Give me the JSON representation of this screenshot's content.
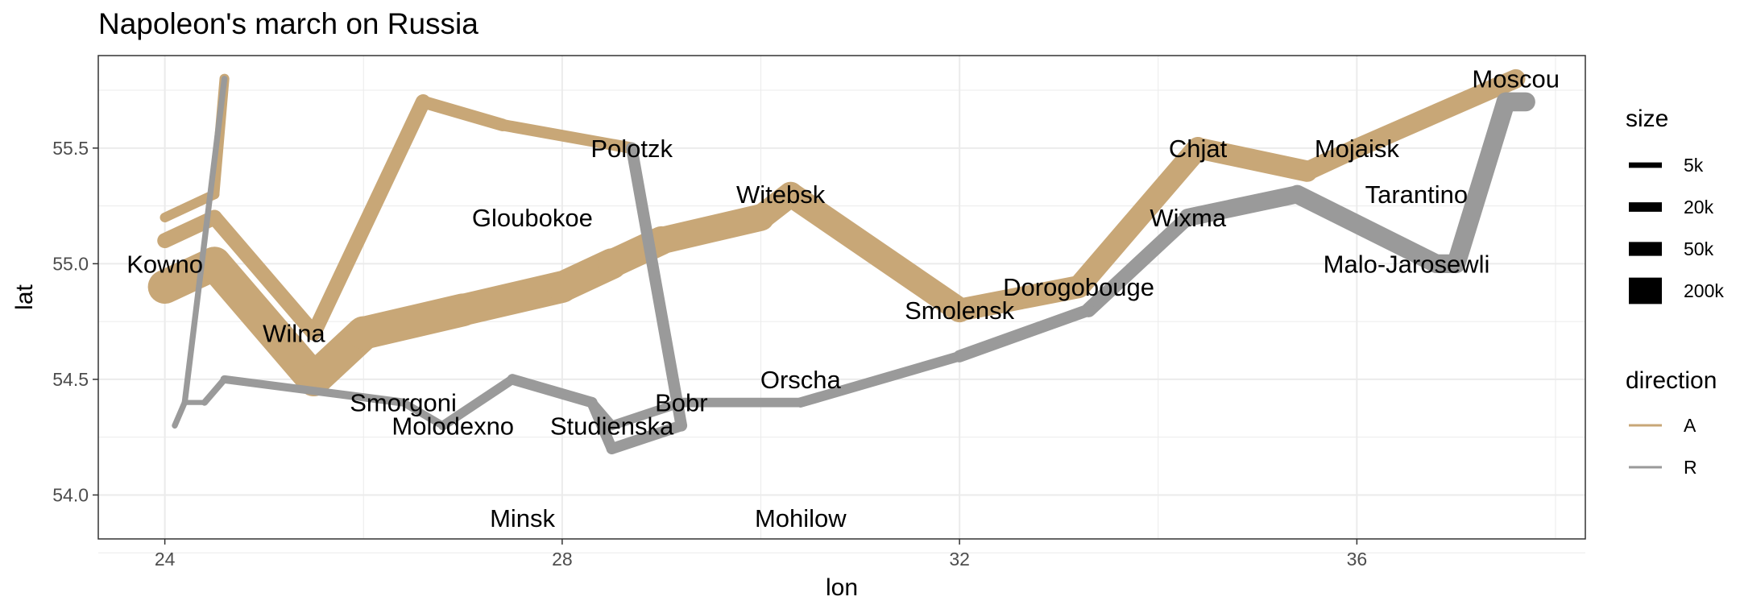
{
  "chart_data": {
    "type": "line",
    "title": "Napoleon's march on Russia",
    "xlabel": "lon",
    "ylabel": "lat",
    "xlim": [
      23.33,
      38.3
    ],
    "ylim": [
      53.81,
      55.9
    ],
    "x_ticks": [
      24,
      28,
      32,
      36
    ],
    "x_tick_labels": [
      "24",
      "28",
      "32",
      "36"
    ],
    "y_ticks": [
      54.0,
      54.5,
      55.0,
      55.5
    ],
    "y_tick_labels": [
      "54.0",
      "54.5",
      "55.0",
      "55.5"
    ],
    "grid": true,
    "legend_position": "right",
    "size_legend": {
      "title": "size",
      "entries": [
        {
          "label": "5k",
          "value": 5000
        },
        {
          "label": "20k",
          "value": 20000
        },
        {
          "label": "50k",
          "value": 50000
        },
        {
          "label": "200k",
          "value": 200000
        }
      ]
    },
    "direction_legend": {
      "title": "direction",
      "entries": [
        {
          "label": "A",
          "color": "#c8a777"
        },
        {
          "label": "R",
          "color": "#9a9a9a"
        }
      ]
    },
    "paths": [
      {
        "direction": "A",
        "color": "#c8a777",
        "points": [
          {
            "lon": 24.0,
            "lat": 54.9,
            "survivors": 340000
          },
          {
            "lon": 24.5,
            "lat": 55.0,
            "survivors": 340000
          },
          {
            "lon": 25.5,
            "lat": 54.5,
            "survivors": 340000
          },
          {
            "lon": 26.0,
            "lat": 54.7,
            "survivors": 320000
          },
          {
            "lon": 27.0,
            "lat": 54.8,
            "survivors": 300000
          },
          {
            "lon": 28.0,
            "lat": 54.9,
            "survivors": 280000
          },
          {
            "lon": 28.5,
            "lat": 55.0,
            "survivors": 240000
          },
          {
            "lon": 29.0,
            "lat": 55.1,
            "survivors": 210000
          },
          {
            "lon": 30.0,
            "lat": 55.2,
            "survivors": 180000
          },
          {
            "lon": 30.3,
            "lat": 55.3,
            "survivors": 175000
          },
          {
            "lon": 32.0,
            "lat": 54.8,
            "survivors": 145000
          },
          {
            "lon": 33.2,
            "lat": 54.9,
            "survivors": 140000
          },
          {
            "lon": 34.4,
            "lat": 55.5,
            "survivors": 127100
          },
          {
            "lon": 35.5,
            "lat": 55.4,
            "survivors": 100000
          },
          {
            "lon": 36.0,
            "lat": 55.5,
            "survivors": 100000
          },
          {
            "lon": 37.6,
            "lat": 55.8,
            "survivors": 100000
          }
        ]
      },
      {
        "direction": "R",
        "color": "#9a9a9a",
        "points": [
          {
            "lon": 37.7,
            "lat": 55.7,
            "survivors": 100000
          },
          {
            "lon": 37.5,
            "lat": 55.7,
            "survivors": 98000
          },
          {
            "lon": 37.0,
            "lat": 55.0,
            "survivors": 97000
          },
          {
            "lon": 36.8,
            "lat": 55.0,
            "survivors": 96000
          },
          {
            "lon": 35.4,
            "lat": 55.3,
            "survivors": 87000
          },
          {
            "lon": 34.3,
            "lat": 55.2,
            "survivors": 55000
          },
          {
            "lon": 33.3,
            "lat": 54.8,
            "survivors": 37000
          },
          {
            "lon": 32.0,
            "lat": 54.6,
            "survivors": 24000
          },
          {
            "lon": 30.4,
            "lat": 54.4,
            "survivors": 20000
          },
          {
            "lon": 29.2,
            "lat": 54.4,
            "survivors": 20000
          },
          {
            "lon": 28.5,
            "lat": 54.3,
            "survivors": 20000
          },
          {
            "lon": 28.3,
            "lat": 54.4,
            "survivors": 20000
          }
        ]
      },
      {
        "direction": "A",
        "color": "#c8a777",
        "points": [
          {
            "lon": 24.0,
            "lat": 55.1,
            "survivors": 60000
          },
          {
            "lon": 24.5,
            "lat": 55.2,
            "survivors": 60000
          },
          {
            "lon": 25.5,
            "lat": 54.7,
            "survivors": 60000
          },
          {
            "lon": 26.6,
            "lat": 55.7,
            "survivors": 40000
          },
          {
            "lon": 27.4,
            "lat": 55.6,
            "survivors": 33000
          },
          {
            "lon": 28.7,
            "lat": 55.5,
            "survivors": 33000
          }
        ]
      },
      {
        "direction": "R",
        "color": "#9a9a9a",
        "points": [
          {
            "lon": 28.7,
            "lat": 55.5,
            "survivors": 33000
          },
          {
            "lon": 29.2,
            "lat": 54.3,
            "survivors": 30000
          },
          {
            "lon": 28.5,
            "lat": 54.2,
            "survivors": 28000
          },
          {
            "lon": 28.3,
            "lat": 54.4,
            "survivors": 28000
          }
        ]
      },
      {
        "direction": "R",
        "color": "#9a9a9a",
        "points": [
          {
            "lon": 28.3,
            "lat": 54.4,
            "survivors": 28000
          },
          {
            "lon": 27.5,
            "lat": 54.5,
            "survivors": 20000
          },
          {
            "lon": 26.8,
            "lat": 54.3,
            "survivors": 12000
          },
          {
            "lon": 26.4,
            "lat": 54.4,
            "survivors": 14000
          },
          {
            "lon": 24.6,
            "lat": 54.5,
            "survivors": 8000
          },
          {
            "lon": 24.4,
            "lat": 54.4,
            "survivors": 4000
          },
          {
            "lon": 24.2,
            "lat": 54.4,
            "survivors": 4000
          },
          {
            "lon": 24.1,
            "lat": 54.3,
            "survivors": 4000
          }
        ]
      },
      {
        "direction": "A",
        "color": "#c8a777",
        "points": [
          {
            "lon": 24.0,
            "lat": 55.2,
            "survivors": 22000
          },
          {
            "lon": 24.5,
            "lat": 55.3,
            "survivors": 22000
          },
          {
            "lon": 24.6,
            "lat": 55.8,
            "survivors": 6000
          }
        ]
      },
      {
        "direction": "R",
        "color": "#9a9a9a",
        "points": [
          {
            "lon": 24.6,
            "lat": 55.8,
            "survivors": 6000
          },
          {
            "lon": 24.2,
            "lat": 54.4,
            "survivors": 6000
          },
          {
            "lon": 24.1,
            "lat": 54.3,
            "survivors": 6000
          }
        ]
      }
    ],
    "cities": [
      {
        "name": "Kowno",
        "lon": 24.0,
        "lat": 55.0
      },
      {
        "name": "Wilna",
        "lon": 25.3,
        "lat": 54.7
      },
      {
        "name": "Smorgoni",
        "lon": 26.4,
        "lat": 54.4
      },
      {
        "name": "Molodexno",
        "lon": 26.9,
        "lat": 54.3
      },
      {
        "name": "Gloubokoe",
        "lon": 27.7,
        "lat": 55.2
      },
      {
        "name": "Minsk",
        "lon": 27.6,
        "lat": 53.9
      },
      {
        "name": "Studienska",
        "lon": 28.5,
        "lat": 54.3
      },
      {
        "name": "Polotzk",
        "lon": 28.7,
        "lat": 55.5
      },
      {
        "name": "Bobr",
        "lon": 29.2,
        "lat": 54.4
      },
      {
        "name": "Witebsk",
        "lon": 30.2,
        "lat": 55.3
      },
      {
        "name": "Orscha",
        "lon": 30.4,
        "lat": 54.5
      },
      {
        "name": "Mohilow",
        "lon": 30.4,
        "lat": 53.9
      },
      {
        "name": "Smolensk",
        "lon": 32.0,
        "lat": 54.8
      },
      {
        "name": "Dorogobouge",
        "lon": 33.2,
        "lat": 54.9
      },
      {
        "name": "Wixma",
        "lon": 34.3,
        "lat": 55.2
      },
      {
        "name": "Chjat",
        "lon": 34.4,
        "lat": 55.5
      },
      {
        "name": "Mojaisk",
        "lon": 36.0,
        "lat": 55.5
      },
      {
        "name": "Moscou",
        "lon": 37.6,
        "lat": 55.8
      },
      {
        "name": "Tarantino",
        "lon": 36.6,
        "lat": 55.3
      },
      {
        "name": "Malo-Jarosewli",
        "lon": 36.5,
        "lat": 55.0
      }
    ]
  }
}
